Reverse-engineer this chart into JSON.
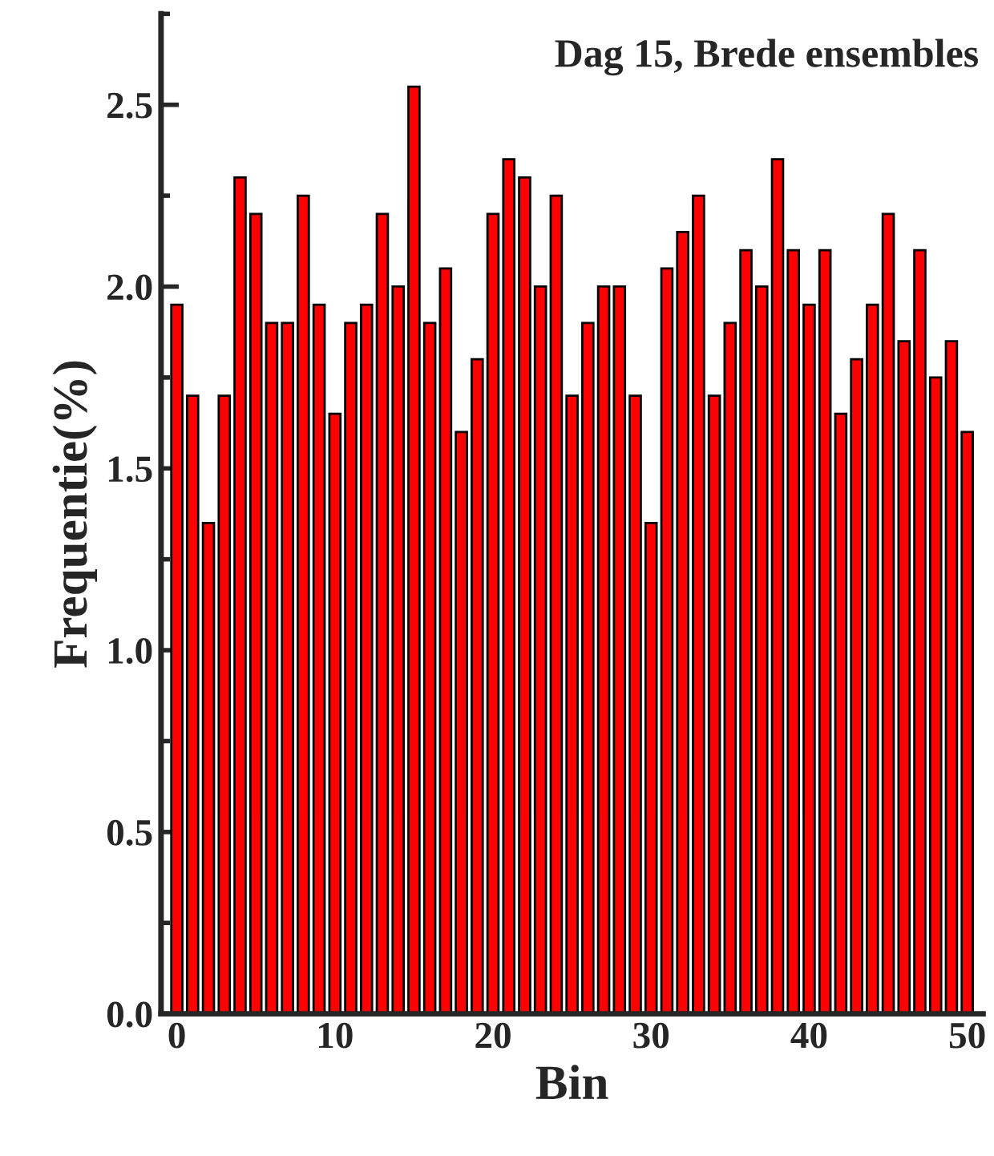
{
  "chart_data": {
    "type": "bar",
    "title": "Dag 15, Brede ensembles",
    "xlabel": "Bin",
    "ylabel": "Frequentie(%)",
    "x": [
      0,
      1,
      2,
      3,
      4,
      5,
      6,
      7,
      8,
      9,
      10,
      11,
      12,
      13,
      14,
      15,
      16,
      17,
      18,
      19,
      20,
      21,
      22,
      23,
      24,
      25,
      26,
      27,
      28,
      29,
      30,
      31,
      32,
      33,
      34,
      35,
      36,
      37,
      38,
      39,
      40,
      41,
      42,
      43,
      44,
      45,
      46,
      47,
      48,
      49,
      50
    ],
    "values": [
      1.95,
      1.7,
      1.35,
      1.7,
      2.3,
      2.2,
      1.9,
      1.9,
      2.25,
      1.95,
      1.65,
      1.9,
      1.95,
      2.2,
      2.0,
      2.55,
      1.9,
      2.05,
      1.6,
      1.8,
      2.2,
      2.35,
      2.3,
      2.0,
      2.25,
      1.7,
      1.9,
      2.0,
      2.0,
      1.7,
      1.35,
      2.05,
      2.15,
      2.25,
      1.7,
      1.9,
      2.1,
      2.0,
      2.35,
      2.1,
      1.95,
      2.1,
      1.65,
      1.8,
      1.95,
      2.2,
      1.85,
      2.1,
      1.75,
      1.85,
      1.6
    ],
    "color": "#ff0000",
    "xlim": [
      -1,
      51
    ],
    "xticks": [
      0,
      10,
      20,
      30,
      40,
      50
    ],
    "ylim": [
      0,
      2.75
    ],
    "yticks": [
      {
        "value": 0,
        "label": "0.0"
      },
      {
        "value": 0.5,
        "label": "0.5"
      },
      {
        "value": 1.0,
        "label": "1.0"
      },
      {
        "value": 1.5,
        "label": "1.5"
      },
      {
        "value": 2.0,
        "label": "2.0"
      },
      {
        "value": 2.5,
        "label": "2.5"
      }
    ],
    "grid": false,
    "legend": false
  }
}
